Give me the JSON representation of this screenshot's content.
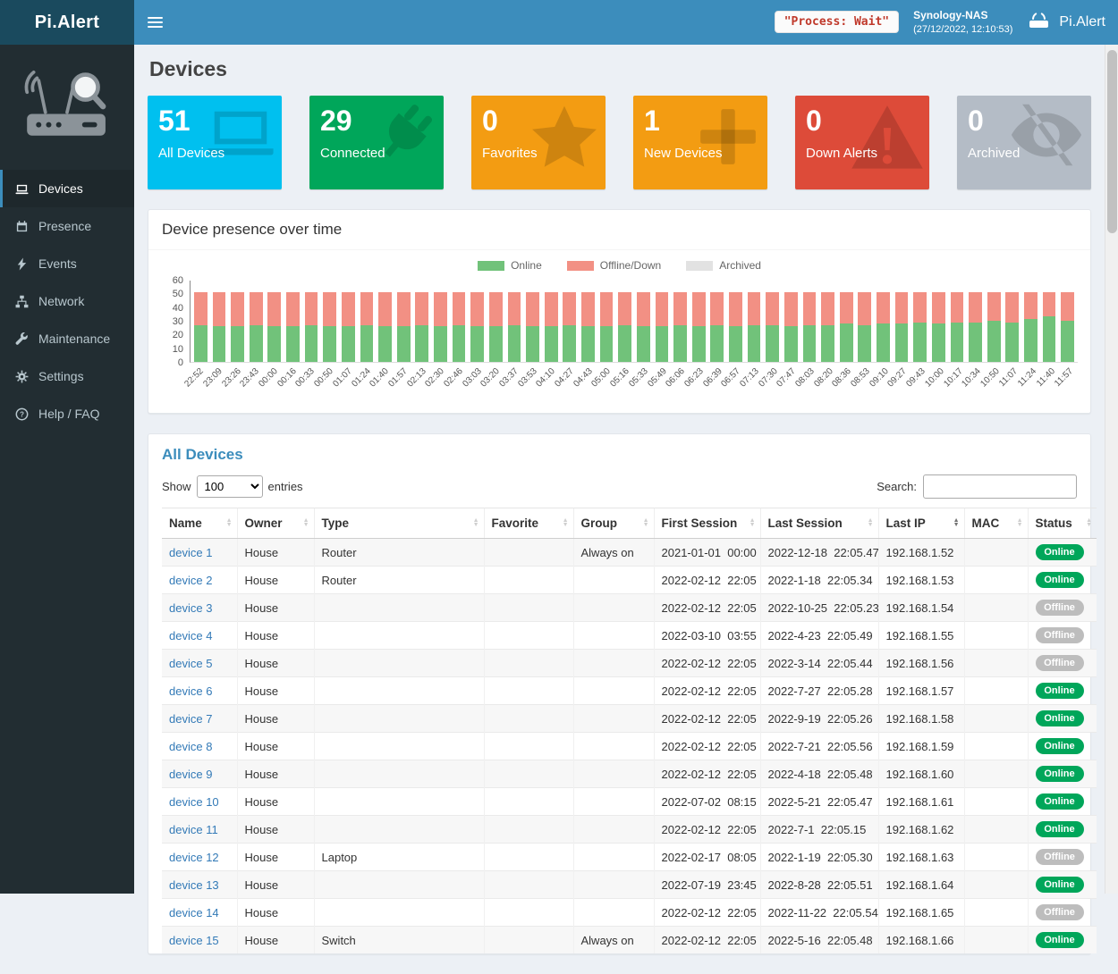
{
  "header": {
    "brand": "Pi.Alert",
    "menu_toggle_icon": "hamburger-icon",
    "process_status": "\"Process: Wait\"",
    "host_name": "Synology-NAS",
    "host_time": "(27/12/2022, 12:10:53)",
    "right_brand_icon": "router-signal-icon",
    "right_brand": "Pi.Alert"
  },
  "sidebar": {
    "logo_icon": "pialert-router-logo",
    "items": [
      {
        "label": "Devices",
        "icon": "devices-icon",
        "active": true
      },
      {
        "label": "Presence",
        "icon": "presence-icon",
        "active": false
      },
      {
        "label": "Events",
        "icon": "events-icon",
        "active": false
      },
      {
        "label": "Network",
        "icon": "network-icon",
        "active": false
      },
      {
        "label": "Maintenance",
        "icon": "maintenance-icon",
        "active": false
      },
      {
        "label": "Settings",
        "icon": "settings-icon",
        "active": false
      },
      {
        "label": "Help / FAQ",
        "icon": "help-icon",
        "active": false
      }
    ]
  },
  "page": {
    "title": "Devices"
  },
  "info_boxes": [
    {
      "value": "51",
      "label": "All Devices",
      "color": "#00c0ef",
      "icon": "laptop-icon"
    },
    {
      "value": "29",
      "label": "Connected",
      "color": "#00a65a",
      "icon": "plug-icon"
    },
    {
      "value": "0",
      "label": "Favorites",
      "color": "#f39c12",
      "icon": "star-icon"
    },
    {
      "value": "1",
      "label": "New Devices",
      "color": "#f39c12",
      "icon": "plus-icon"
    },
    {
      "value": "0",
      "label": "Down Alerts",
      "color": "#dd4b39",
      "icon": "warning-icon"
    },
    {
      "value": "0",
      "label": "Archived",
      "color": "#b4bcc6",
      "icon": "eye-slash-icon"
    }
  ],
  "presence": {
    "title": "Device presence over time"
  },
  "chart_data": {
    "type": "bar",
    "stacked": true,
    "title": "Device presence over time",
    "legend_position": "top",
    "grid": false,
    "ylim": [
      0,
      60
    ],
    "yticks": [
      0,
      10,
      20,
      30,
      40,
      50,
      60
    ],
    "categories": [
      "22:52",
      "23:09",
      "23:26",
      "23:43",
      "00:00",
      "00:16",
      "00:33",
      "00:50",
      "01:07",
      "01:24",
      "01:40",
      "01:57",
      "02:13",
      "02:30",
      "02:46",
      "03:03",
      "03:20",
      "03:37",
      "03:53",
      "04:10",
      "04:27",
      "04:43",
      "05:00",
      "05:16",
      "05:33",
      "05:49",
      "06:06",
      "06:23",
      "06:39",
      "06:57",
      "07:13",
      "07:30",
      "07:47",
      "08:03",
      "08:20",
      "08:36",
      "08:53",
      "09:10",
      "09:27",
      "09:43",
      "10:00",
      "10:17",
      "10:34",
      "10:50",
      "11:07",
      "11:24",
      "11:40",
      "11:57"
    ],
    "series": [
      {
        "name": "Online",
        "color": "#71c27a",
        "values": [
          27,
          26,
          26,
          27,
          26,
          26,
          27,
          26,
          26,
          27,
          26,
          26,
          27,
          26,
          27,
          26,
          26,
          27,
          26,
          26,
          27,
          26,
          26,
          27,
          26,
          26,
          27,
          26,
          27,
          26,
          27,
          27,
          26,
          27,
          27,
          28,
          27,
          28,
          28,
          29,
          28,
          29,
          29,
          30,
          29,
          31,
          33,
          30
        ]
      },
      {
        "name": "Offline/Down",
        "color": "#f29084",
        "values": [
          24,
          25,
          25,
          24,
          25,
          25,
          24,
          25,
          25,
          24,
          25,
          25,
          24,
          25,
          24,
          25,
          25,
          24,
          25,
          25,
          24,
          25,
          25,
          24,
          25,
          25,
          24,
          25,
          24,
          25,
          24,
          24,
          25,
          24,
          24,
          23,
          24,
          23,
          23,
          22,
          23,
          22,
          22,
          21,
          22,
          20,
          18,
          21
        ]
      },
      {
        "name": "Archived",
        "color": "#e2e2e2",
        "values": [
          0,
          0,
          0,
          0,
          0,
          0,
          0,
          0,
          0,
          0,
          0,
          0,
          0,
          0,
          0,
          0,
          0,
          0,
          0,
          0,
          0,
          0,
          0,
          0,
          0,
          0,
          0,
          0,
          0,
          0,
          0,
          0,
          0,
          0,
          0,
          0,
          0,
          0,
          0,
          0,
          0,
          0,
          0,
          0,
          0,
          0,
          0,
          0
        ]
      }
    ]
  },
  "table": {
    "title": "All Devices",
    "show_label": "Show",
    "entries_value": "100",
    "entries_label": "entries",
    "search_label": "Search:",
    "status_colors": {
      "Online": "#00a65a",
      "Offline": "#bdbdbd"
    },
    "columns": [
      {
        "key": "name",
        "label": "Name",
        "sorted": false
      },
      {
        "key": "owner",
        "label": "Owner",
        "sorted": false
      },
      {
        "key": "type",
        "label": "Type",
        "sorted": false
      },
      {
        "key": "favorite",
        "label": "Favorite",
        "sorted": false
      },
      {
        "key": "group",
        "label": "Group",
        "sorted": false
      },
      {
        "key": "first_session",
        "label": "First Session",
        "sorted": false
      },
      {
        "key": "last_session",
        "label": "Last Session",
        "sorted": false
      },
      {
        "key": "last_ip",
        "label": "Last IP",
        "sorted": true
      },
      {
        "key": "mac",
        "label": "MAC",
        "sorted": false
      },
      {
        "key": "status",
        "label": "Status",
        "sorted": false
      }
    ],
    "rows": [
      {
        "name": "device 1",
        "owner": "House",
        "type": "Router",
        "favorite": "",
        "group": "Always on",
        "first_session": "2021-01-01  00:00",
        "last_session": "2022-12-18  22:05.47",
        "last_ip": "192.168.1.52",
        "mac": "",
        "status": "Online"
      },
      {
        "name": "device 2",
        "owner": "House",
        "type": "Router",
        "favorite": "",
        "group": "",
        "first_session": "2022-02-12  22:05",
        "last_session": "2022-1-18  22:05.34",
        "last_ip": "192.168.1.53",
        "mac": "",
        "status": "Online"
      },
      {
        "name": "device 3",
        "owner": "House",
        "type": "",
        "favorite": "",
        "group": "",
        "first_session": "2022-02-12  22:05",
        "last_session": "2022-10-25  22:05.23",
        "last_ip": "192.168.1.54",
        "mac": "",
        "status": "Offline"
      },
      {
        "name": "device 4",
        "owner": "House",
        "type": "",
        "favorite": "",
        "group": "",
        "first_session": "2022-03-10  03:55",
        "last_session": "2022-4-23  22:05.49",
        "last_ip": "192.168.1.55",
        "mac": "",
        "status": "Offline"
      },
      {
        "name": "device 5",
        "owner": "House",
        "type": "",
        "favorite": "",
        "group": "",
        "first_session": "2022-02-12  22:05",
        "last_session": "2022-3-14  22:05.44",
        "last_ip": "192.168.1.56",
        "mac": "",
        "status": "Offline"
      },
      {
        "name": "device 6",
        "owner": "House",
        "type": "",
        "favorite": "",
        "group": "",
        "first_session": "2022-02-12  22:05",
        "last_session": "2022-7-27  22:05.28",
        "last_ip": "192.168.1.57",
        "mac": "",
        "status": "Online"
      },
      {
        "name": "device 7",
        "owner": "House",
        "type": "",
        "favorite": "",
        "group": "",
        "first_session": "2022-02-12  22:05",
        "last_session": "2022-9-19  22:05.26",
        "last_ip": "192.168.1.58",
        "mac": "",
        "status": "Online"
      },
      {
        "name": "device 8",
        "owner": "House",
        "type": "",
        "favorite": "",
        "group": "",
        "first_session": "2022-02-12  22:05",
        "last_session": "2022-7-21  22:05.56",
        "last_ip": "192.168.1.59",
        "mac": "",
        "status": "Online"
      },
      {
        "name": "device 9",
        "owner": "House",
        "type": "",
        "favorite": "",
        "group": "",
        "first_session": "2022-02-12  22:05",
        "last_session": "2022-4-18  22:05.48",
        "last_ip": "192.168.1.60",
        "mac": "",
        "status": "Online"
      },
      {
        "name": "device 10",
        "owner": "House",
        "type": "",
        "favorite": "",
        "group": "",
        "first_session": "2022-07-02  08:15",
        "last_session": "2022-5-21  22:05.47",
        "last_ip": "192.168.1.61",
        "mac": "",
        "status": "Online"
      },
      {
        "name": "device 11",
        "owner": "House",
        "type": "",
        "favorite": "",
        "group": "",
        "first_session": "2022-02-12  22:05",
        "last_session": "2022-7-1  22:05.15",
        "last_ip": "192.168.1.62",
        "mac": "",
        "status": "Online"
      },
      {
        "name": "device 12",
        "owner": "House",
        "type": "Laptop",
        "favorite": "",
        "group": "",
        "first_session": "2022-02-17  08:05",
        "last_session": "2022-1-19  22:05.30",
        "last_ip": "192.168.1.63",
        "mac": "",
        "status": "Offline"
      },
      {
        "name": "device 13",
        "owner": "House",
        "type": "",
        "favorite": "",
        "group": "",
        "first_session": "2022-07-19  23:45",
        "last_session": "2022-8-28  22:05.51",
        "last_ip": "192.168.1.64",
        "mac": "",
        "status": "Online"
      },
      {
        "name": "device 14",
        "owner": "House",
        "type": "",
        "favorite": "",
        "group": "",
        "first_session": "2022-02-12  22:05",
        "last_session": "2022-11-22  22:05.54",
        "last_ip": "192.168.1.65",
        "mac": "",
        "status": "Offline"
      },
      {
        "name": "device 15",
        "owner": "House",
        "type": "Switch",
        "favorite": "",
        "group": "Always on",
        "first_session": "2022-02-12  22:05",
        "last_session": "2022-5-16  22:05.48",
        "last_ip": "192.168.1.66",
        "mac": "",
        "status": "Online"
      }
    ]
  },
  "colors": {
    "navbar": "#3c8dbc",
    "logo_bg": "#1a4a5e",
    "sidebar_bg": "#222d32",
    "sidebar_active_bg": "#1e282c",
    "content_bg": "#ecf0f5",
    "link": "#337ab7",
    "table_title": "#3c8dbc"
  }
}
